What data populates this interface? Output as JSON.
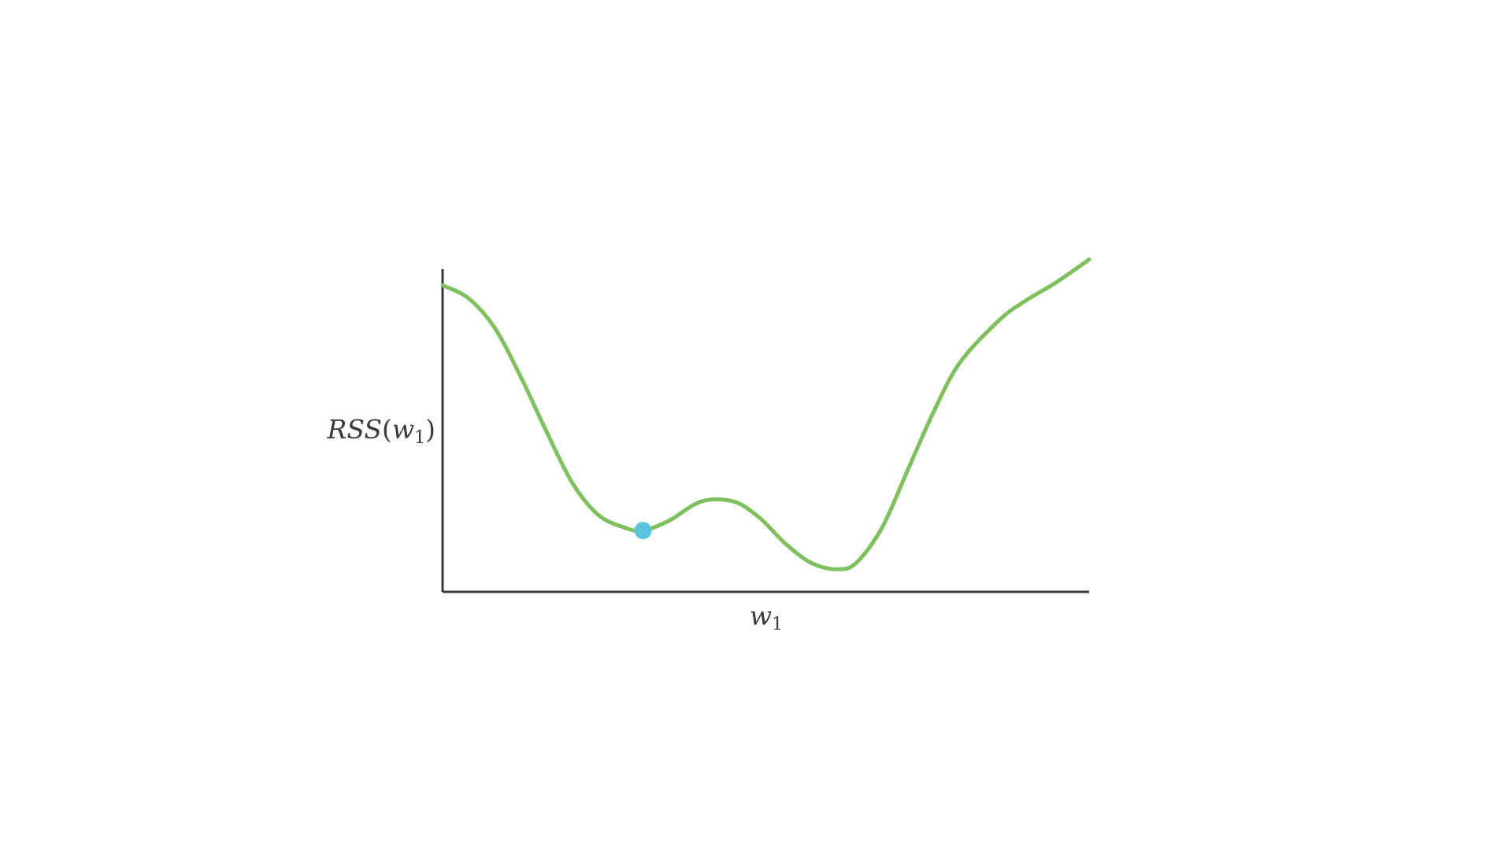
{
  "chart_data": {
    "type": "line",
    "title": "",
    "xlabel": {
      "text": "w",
      "subscript": "1"
    },
    "ylabel": {
      "prefix": "RSS",
      "open": "(",
      "var": "w",
      "subscript": "1",
      "close": ")"
    },
    "xlim": [
      0,
      1
    ],
    "ylim": [
      0,
      1
    ],
    "grid": false,
    "ticks": false,
    "series": [
      {
        "color": "#7dc05d",
        "x": [
          0.0,
          0.04,
          0.08,
          0.12,
          0.16,
          0.2,
          0.24,
          0.28,
          0.31,
          0.35,
          0.4,
          0.45,
          0.49,
          0.53,
          0.57,
          0.61,
          0.64,
          0.68,
          0.72,
          0.76,
          0.8,
          0.86,
          0.9,
          0.95,
          1.0
        ],
        "y": [
          0.95,
          0.91,
          0.82,
          0.67,
          0.5,
          0.34,
          0.24,
          0.2,
          0.19,
          0.22,
          0.28,
          0.28,
          0.23,
          0.15,
          0.09,
          0.07,
          0.09,
          0.2,
          0.38,
          0.56,
          0.71,
          0.84,
          0.9,
          0.96,
          1.03
        ]
      }
    ],
    "highlight_point": {
      "x": 0.31,
      "y": 0.19,
      "color": "#5bc5dd"
    }
  }
}
